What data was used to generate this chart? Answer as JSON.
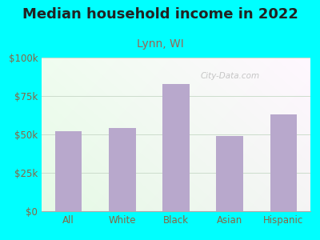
{
  "title": "Median household income in 2022",
  "subtitle": "Lynn, WI",
  "categories": [
    "All",
    "White",
    "Black",
    "Asian",
    "Hispanic"
  ],
  "values": [
    52000,
    54000,
    83000,
    49000,
    63000
  ],
  "bar_color": "#b8a8cc",
  "title_fontsize": 13,
  "subtitle_fontsize": 10,
  "tick_label_fontsize": 8.5,
  "title_color": "#222222",
  "subtitle_color": "#996655",
  "ytick_color": "#886644",
  "xtick_color": "#886644",
  "background_outer": "#00ffff",
  "background_inner_colors": [
    "#e8f5e0",
    "#f0faf5",
    "#ffffff"
  ],
  "watermark": "City-Data.com",
  "ylim": [
    0,
    100000
  ],
  "yticks": [
    0,
    25000,
    50000,
    75000,
    100000
  ],
  "ytick_labels": [
    "$0",
    "$25k",
    "$50k",
    "$75k",
    "$100k"
  ],
  "grid_color": "#ccddcc"
}
